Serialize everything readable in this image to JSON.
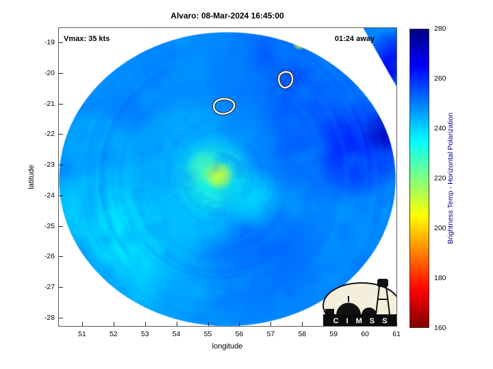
{
  "title": "Alvaro: 08-Mar-2024 16:45:00",
  "annotations": {
    "vmax": "Vmax: 35 kts",
    "away": "01:24 away"
  },
  "axes": {
    "xlabel": "longitude",
    "ylabel": "latitude",
    "x_ticks": [
      51,
      52,
      53,
      54,
      55,
      56,
      57,
      58,
      59,
      60,
      61
    ],
    "y_ticks": [
      -19,
      -20,
      -21,
      -22,
      -23,
      -24,
      -25,
      -26,
      -27,
      -28
    ],
    "x_range": [
      50.24,
      61.02
    ],
    "y_range": [
      -28.29,
      -18.51
    ]
  },
  "colorbar": {
    "label": "Brightness Temp - Horizontal Polarization",
    "label_color": "#00008b",
    "range": [
      160,
      280
    ],
    "ticks": [
      280,
      260,
      240,
      220,
      200,
      180,
      160
    ],
    "stops": [
      {
        "t": 280,
        "color": "#000083"
      },
      {
        "t": 265,
        "color": "#0000ff"
      },
      {
        "t": 235,
        "color": "#00ffff"
      },
      {
        "t": 205,
        "color": "#ffff00"
      },
      {
        "t": 175,
        "color": "#ff0000"
      },
      {
        "t": 160,
        "color": "#800000"
      }
    ]
  },
  "logo": {
    "name": "CIMSS",
    "text": "C I M S S"
  },
  "chart_data": {
    "type": "heatmap",
    "title": "Alvaro: 08-Mar-2024 16:45:00",
    "storm": {
      "name": "Alvaro",
      "datetime": "08-Mar-2024 16:45:00",
      "vmax_kts": 35,
      "forecast_offset": "01:24 away"
    },
    "xlabel": "longitude",
    "ylabel": "latitude",
    "xlim": [
      50.24,
      61.02
    ],
    "ylim": [
      -28.29,
      -18.51
    ],
    "value_label": "Brightness Temp - Horizontal Polarization",
    "value_range": [
      160,
      280
    ],
    "colormap": "jet-reversed (280=dark blue top, 160=dark red bottom)",
    "swath": {
      "center_lon": 55.62,
      "center_lat": -23.47,
      "r_lon_deg": 5.35,
      "r_lat_deg": 4.8
    },
    "circulation_center": {
      "lon": 55.4,
      "lat": -23.4
    },
    "base_temp": 249,
    "regions": [
      {
        "lon": 55.8,
        "lat": -22.8,
        "r": 3.2,
        "temp": 246
      },
      {
        "lon": 58.6,
        "lat": -21.8,
        "r": 2.6,
        "temp": 256
      },
      {
        "lon": 52.3,
        "lat": -23.8,
        "r": 2.4,
        "temp": 242
      },
      {
        "lon": 53.0,
        "lat": -26.4,
        "r": 2.2,
        "temp": 239
      },
      {
        "lon": 56.7,
        "lat": -25.8,
        "r": 2.2,
        "temp": 253
      },
      {
        "lon": 57.2,
        "lat": -19.8,
        "r": 1.8,
        "temp": 256
      },
      {
        "lon": 54.6,
        "lat": -27.4,
        "r": 1.8,
        "temp": 246
      },
      {
        "lon": 59.9,
        "lat": -22.5,
        "r": 1.6,
        "temp": 262
      },
      {
        "lon": 54.7,
        "lat": -24.4,
        "r": 1.6,
        "temp": 241
      },
      {
        "lon": 52.2,
        "lat": -25.2,
        "r": 1.5,
        "temp": 237
      },
      {
        "lon": 55.9,
        "lat": -20.6,
        "r": 1.5,
        "temp": 250
      },
      {
        "lon": 53.8,
        "lat": -20.6,
        "r": 1.5,
        "temp": 248
      },
      {
        "lon": 54.3,
        "lat": -22.3,
        "r": 1.5,
        "temp": 243
      },
      {
        "lon": 56.2,
        "lat": -27.2,
        "r": 1.4,
        "temp": 250
      },
      {
        "lon": 55.2,
        "lat": -23.4,
        "r": 1.3,
        "temp": 231
      },
      {
        "lon": 50.9,
        "lat": -24.5,
        "r": 1.3,
        "temp": 240
      },
      {
        "lon": 51.3,
        "lat": -22.3,
        "r": 1.2,
        "temp": 244
      },
      {
        "lon": 56.4,
        "lat": -24.1,
        "r": 1.0,
        "temp": 239
      },
      {
        "lon": 60.9,
        "lat": -19.5,
        "r": 0.9,
        "temp": 266
      },
      {
        "lon": 60.6,
        "lat": -21.9,
        "r": 0.75,
        "temp": 273
      },
      {
        "lon": 60.7,
        "lat": -20.0,
        "r": 0.6,
        "temp": 267
      },
      {
        "lon": 54.9,
        "lat": -23.1,
        "r": 0.6,
        "temp": 226
      },
      {
        "lon": 55.35,
        "lat": -23.35,
        "r": 0.5,
        "temp": 210
      },
      {
        "lon": 57.9,
        "lat": -19.05,
        "r": 0.22,
        "temp": 206
      }
    ],
    "contours": [
      {
        "lon": 57.45,
        "lat": -20.25,
        "shape": "closed white loop"
      },
      {
        "lon": 55.5,
        "lat": -21.15,
        "shape": "closed white loop"
      }
    ]
  }
}
